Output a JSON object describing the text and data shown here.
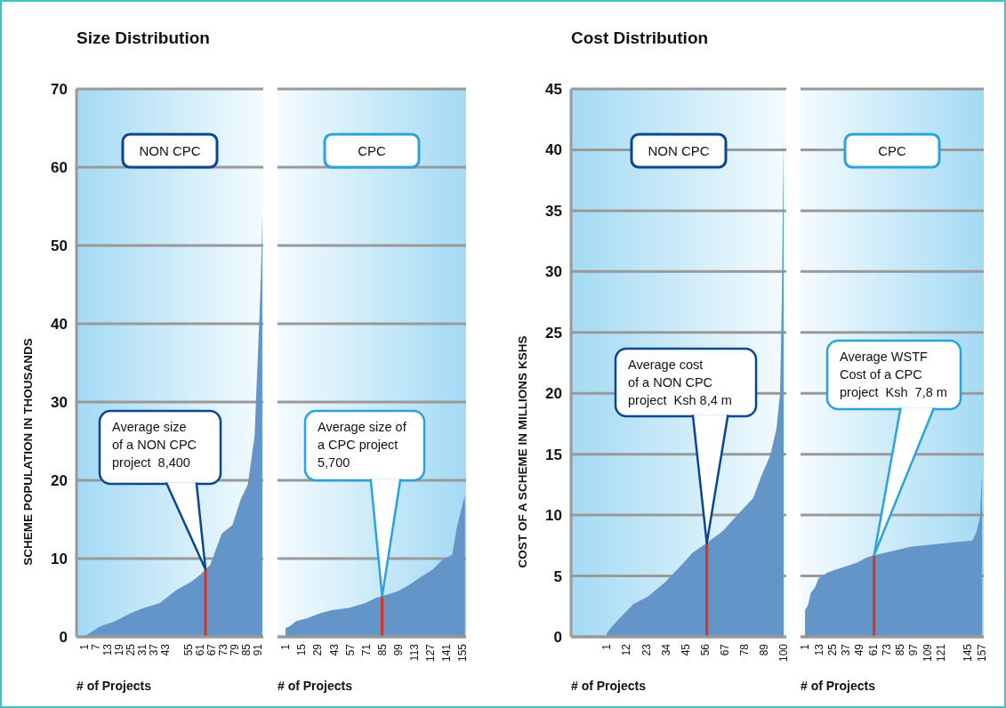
{
  "chart_data": [
    {
      "type": "area",
      "title": "Size Distribution",
      "subtitle": "NON CPC",
      "xlabel": "# of Projects",
      "ylabel": "SCHEME POPULATION IN THOUSANDS",
      "grid": "y",
      "xlim": [
        -3,
        94
      ],
      "ylim": [
        0,
        70
      ],
      "xticks": [
        1,
        7,
        13,
        19,
        25,
        31,
        37,
        43,
        55,
        61,
        67,
        73,
        79,
        85,
        91
      ],
      "yticks": [
        0,
        10,
        20,
        30,
        40,
        50,
        60,
        70
      ],
      "series": [
        {
          "color": "#6495c8",
          "x": [
            1.5,
            9,
            17,
            25,
            32,
            40,
            49,
            57,
            62,
            64,
            66.5,
            69,
            72.5,
            78,
            82,
            86,
            89.5,
            90.5,
            92,
            92.8,
            93.5
          ],
          "values": [
            0.1,
            1.3,
            2.0,
            3.0,
            3.7,
            4.3,
            6.0,
            7.1,
            8.1,
            8.6,
            9.2,
            10.9,
            13.2,
            14.3,
            17.4,
            19.5,
            25.7,
            32,
            40.8,
            46.5,
            54
          ]
        },
        {
          "type": "bar",
          "color": "#e0301e",
          "x": [
            64
          ],
          "values": [
            8.6
          ]
        }
      ],
      "annotations": [
        {
          "text": "Average size\nof a NON CPC\nproject  8,400",
          "x": 64,
          "y": 8.6
        }
      ]
    },
    {
      "type": "area",
      "subtitle": "CPC",
      "xlabel": "# of Projects",
      "grid": "y",
      "tick_labels": "x",
      "xlim": [
        -6,
        158
      ],
      "ylim": [
        0,
        70
      ],
      "xticks": [
        1,
        15,
        29,
        43,
        57,
        71,
        85,
        99,
        113,
        127,
        141,
        155
      ],
      "yticks": [
        0,
        10,
        20,
        30,
        40,
        50,
        60,
        70
      ],
      "series": [
        {
          "color": "#6495c8",
          "x": [
            1,
            5,
            10,
            20,
            31,
            41,
            56,
            70,
            80,
            85,
            98,
            108,
            119,
            129,
            137,
            146,
            150,
            155,
            157
          ],
          "values": [
            1.1,
            1.4,
            2.0,
            2.4,
            3.0,
            3.4,
            3.7,
            4.3,
            5.0,
            5.2,
            5.8,
            6.6,
            7.7,
            8.6,
            9.8,
            10.5,
            14.0,
            17,
            18
          ]
        },
        {
          "type": "bar",
          "color": "#e0301e",
          "x": [
            85
          ],
          "values": [
            5.2
          ]
        }
      ],
      "annotations": [
        {
          "text": "Average size of\na CPC project\n5,700",
          "x": 85,
          "y": 5.2
        }
      ]
    },
    {
      "type": "area",
      "title": "Cost Distribution",
      "subtitle": "NON CPC",
      "xlabel": "# of Projects",
      "ylabel": "COST OF A SCHEME IN MILLIONS KSHS",
      "grid": "y",
      "xlim": [
        -19,
        101.5
      ],
      "ylim": [
        0,
        45
      ],
      "xticks": [
        1,
        12,
        23,
        34,
        45,
        56,
        67,
        78,
        89,
        100
      ],
      "yticks": [
        0,
        5,
        10,
        15,
        20,
        25,
        30,
        35,
        40,
        45
      ],
      "series": [
        {
          "color": "#6495c8",
          "x": [
            1,
            3,
            8,
            16,
            24,
            33,
            41,
            49,
            57,
            66,
            74,
            83,
            87.5,
            92.5,
            96,
            98,
            99,
            100
          ],
          "values": [
            0.3,
            0.7,
            1.5,
            2.7,
            3.3,
            4.4,
            5.6,
            6.9,
            7.7,
            8.7,
            10.0,
            11.4,
            13.2,
            14.9,
            17.1,
            20,
            27.5,
            41
          ]
        },
        {
          "type": "bar",
          "color": "#e0301e",
          "x": [
            57
          ],
          "values": [
            7.7
          ]
        }
      ],
      "annotations": [
        {
          "text": "Average cost\nof a NON CPC\nproject  Ksh 8,4 m",
          "x": 57,
          "y": 7.7
        }
      ]
    },
    {
      "type": "area",
      "subtitle": "CPC",
      "xlabel": "# of Projects",
      "grid": "y",
      "tick_labels": "x",
      "xlim": [
        -3,
        159
      ],
      "ylim": [
        0,
        45
      ],
      "xticks": [
        1,
        13,
        25,
        37,
        49,
        61,
        73,
        85,
        97,
        109,
        121,
        145,
        157
      ],
      "yticks": [
        0,
        5,
        10,
        15,
        20,
        25,
        30,
        35,
        40,
        45
      ],
      "series": [
        {
          "color": "#6495c8",
          "x": [
            1,
            3.5,
            6,
            10,
            13,
            21,
            34,
            47,
            55,
            62,
            76,
            94,
            115,
            136,
            149,
            152,
            155.5,
            157.5
          ],
          "values": [
            2.2,
            2.6,
            3.6,
            4.1,
            4.8,
            5.3,
            5.7,
            6.1,
            6.5,
            6.7,
            7.0,
            7.4,
            7.6,
            7.8,
            7.9,
            8.5,
            9.7,
            13.4
          ]
        },
        {
          "type": "bar",
          "color": "#e0301e",
          "x": [
            62
          ],
          "values": [
            6.7
          ]
        }
      ],
      "annotations": [
        {
          "text": "Average WSTF\nCost of a CPC\nproject  Ksh  7,8 m",
          "x": 62,
          "y": 6.7
        }
      ]
    }
  ]
}
